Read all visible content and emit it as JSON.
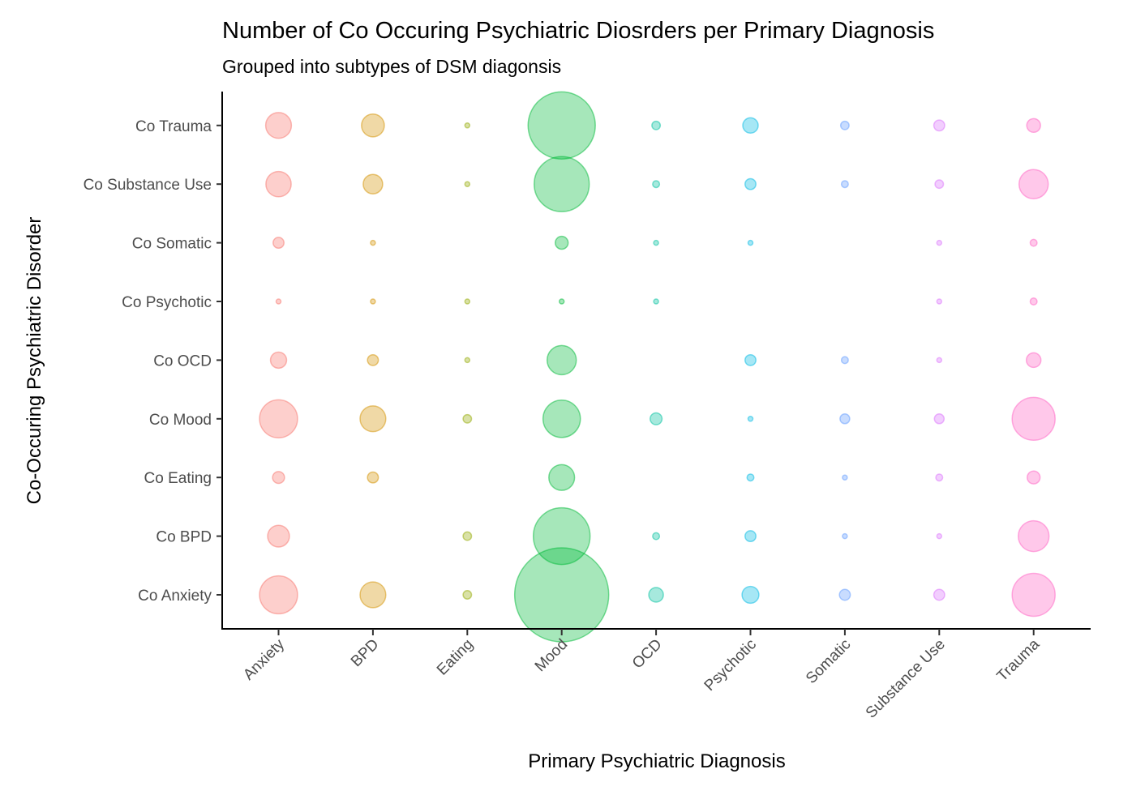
{
  "chart_data": {
    "type": "scatter",
    "subtype": "bubble",
    "title": "Number of Co Occuring Psychiatric Diosrders per Primary Diagnosis",
    "subtitle": "Grouped into subtypes of DSM diagonsis",
    "xlabel": "Primary Psychiatric Diagnosis",
    "ylabel": "Co-Occuring Psychiatric Disorder",
    "grid": false,
    "legend": "none",
    "x_categories": [
      "Anxiety",
      "BPD",
      "Eating",
      "Mood",
      "OCD",
      "Psychotic",
      "Somatic",
      "Substance Use",
      "Trauma"
    ],
    "y_categories": [
      "Co Anxiety",
      "Co BPD",
      "Co Eating",
      "Co Mood",
      "Co OCD",
      "Co Psychotic",
      "Co Somatic",
      "Co Substance Use",
      "Co Trauma"
    ],
    "colors": [
      "#F8766D",
      "#D39200",
      "#93AA00",
      "#00BA38",
      "#00C19F",
      "#00B9E3",
      "#619CFF",
      "#DB72FB",
      "#FF61C3"
    ],
    "alpha": 0.5,
    "size_encoding": "area proportional to count",
    "points": [
      {
        "x": "Anxiety",
        "y": "Co Trauma",
        "value": 28
      },
      {
        "x": "Anxiety",
        "y": "Co Substance Use",
        "value": 27
      },
      {
        "x": "Anxiety",
        "y": "Co Somatic",
        "value": 5
      },
      {
        "x": "Anxiety",
        "y": "Co Psychotic",
        "value": 1
      },
      {
        "x": "Anxiety",
        "y": "Co OCD",
        "value": 11
      },
      {
        "x": "Anxiety",
        "y": "Co Mood",
        "value": 61
      },
      {
        "x": "Anxiety",
        "y": "Co Eating",
        "value": 6
      },
      {
        "x": "Anxiety",
        "y": "Co BPD",
        "value": 20
      },
      {
        "x": "Anxiety",
        "y": "Co Anxiety",
        "value": 61
      },
      {
        "x": "BPD",
        "y": "Co Trauma",
        "value": 22
      },
      {
        "x": "BPD",
        "y": "Co Substance Use",
        "value": 16
      },
      {
        "x": "BPD",
        "y": "Co Somatic",
        "value": 1
      },
      {
        "x": "BPD",
        "y": "Co Psychotic",
        "value": 1
      },
      {
        "x": "BPD",
        "y": "Co OCD",
        "value": 5
      },
      {
        "x": "BPD",
        "y": "Co Mood",
        "value": 28
      },
      {
        "x": "BPD",
        "y": "Co Eating",
        "value": 5
      },
      {
        "x": "BPD",
        "y": "Co Anxiety",
        "value": 28
      },
      {
        "x": "Eating",
        "y": "Co Trauma",
        "value": 1
      },
      {
        "x": "Eating",
        "y": "Co Substance Use",
        "value": 1
      },
      {
        "x": "Eating",
        "y": "Co Psychotic",
        "value": 1
      },
      {
        "x": "Eating",
        "y": "Co OCD",
        "value": 1
      },
      {
        "x": "Eating",
        "y": "Co Mood",
        "value": 3
      },
      {
        "x": "Eating",
        "y": "Co BPD",
        "value": 3
      },
      {
        "x": "Eating",
        "y": "Co Anxiety",
        "value": 3
      },
      {
        "x": "Mood",
        "y": "Co Trauma",
        "value": 191
      },
      {
        "x": "Mood",
        "y": "Co Substance Use",
        "value": 128
      },
      {
        "x": "Mood",
        "y": "Co Somatic",
        "value": 7
      },
      {
        "x": "Mood",
        "y": "Co Psychotic",
        "value": 1
      },
      {
        "x": "Mood",
        "y": "Co OCD",
        "value": 36
      },
      {
        "x": "Mood",
        "y": "Co Mood",
        "value": 59
      },
      {
        "x": "Mood",
        "y": "Co Eating",
        "value": 28
      },
      {
        "x": "Mood",
        "y": "Co BPD",
        "value": 136
      },
      {
        "x": "Mood",
        "y": "Co Anxiety",
        "value": 374
      },
      {
        "x": "OCD",
        "y": "Co Trauma",
        "value": 3
      },
      {
        "x": "OCD",
        "y": "Co Substance Use",
        "value": 2
      },
      {
        "x": "OCD",
        "y": "Co Somatic",
        "value": 1
      },
      {
        "x": "OCD",
        "y": "Co Psychotic",
        "value": 1
      },
      {
        "x": "OCD",
        "y": "Co Mood",
        "value": 6
      },
      {
        "x": "OCD",
        "y": "Co BPD",
        "value": 2
      },
      {
        "x": "OCD",
        "y": "Co Anxiety",
        "value": 9
      },
      {
        "x": "Psychotic",
        "y": "Co Trauma",
        "value": 10
      },
      {
        "x": "Psychotic",
        "y": "Co Substance Use",
        "value": 5
      },
      {
        "x": "Psychotic",
        "y": "Co Somatic",
        "value": 1
      },
      {
        "x": "Psychotic",
        "y": "Co OCD",
        "value": 5
      },
      {
        "x": "Psychotic",
        "y": "Co Mood",
        "value": 1
      },
      {
        "x": "Psychotic",
        "y": "Co Eating",
        "value": 2
      },
      {
        "x": "Psychotic",
        "y": "Co BPD",
        "value": 5
      },
      {
        "x": "Psychotic",
        "y": "Co Anxiety",
        "value": 12
      },
      {
        "x": "Somatic",
        "y": "Co Trauma",
        "value": 3
      },
      {
        "x": "Somatic",
        "y": "Co Substance Use",
        "value": 2
      },
      {
        "x": "Somatic",
        "y": "Co OCD",
        "value": 2
      },
      {
        "x": "Somatic",
        "y": "Co Mood",
        "value": 4
      },
      {
        "x": "Somatic",
        "y": "Co Eating",
        "value": 1
      },
      {
        "x": "Somatic",
        "y": "Co BPD",
        "value": 1
      },
      {
        "x": "Somatic",
        "y": "Co Anxiety",
        "value": 5
      },
      {
        "x": "Substance Use",
        "y": "Co Trauma",
        "value": 5
      },
      {
        "x": "Substance Use",
        "y": "Co Substance Use",
        "value": 3
      },
      {
        "x": "Substance Use",
        "y": "Co Somatic",
        "value": 1
      },
      {
        "x": "Substance Use",
        "y": "Co Psychotic",
        "value": 1
      },
      {
        "x": "Substance Use",
        "y": "Co OCD",
        "value": 1
      },
      {
        "x": "Substance Use",
        "y": "Co Mood",
        "value": 4
      },
      {
        "x": "Substance Use",
        "y": "Co Eating",
        "value": 2
      },
      {
        "x": "Substance Use",
        "y": "Co BPD",
        "value": 1
      },
      {
        "x": "Substance Use",
        "y": "Co Anxiety",
        "value": 5
      },
      {
        "x": "Trauma",
        "y": "Co Trauma",
        "value": 8
      },
      {
        "x": "Trauma",
        "y": "Co Substance Use",
        "value": 36
      },
      {
        "x": "Trauma",
        "y": "Co Somatic",
        "value": 2
      },
      {
        "x": "Trauma",
        "y": "Co Psychotic",
        "value": 2
      },
      {
        "x": "Trauma",
        "y": "Co OCD",
        "value": 9
      },
      {
        "x": "Trauma",
        "y": "Co Mood",
        "value": 78
      },
      {
        "x": "Trauma",
        "y": "Co Eating",
        "value": 7
      },
      {
        "x": "Trauma",
        "y": "Co BPD",
        "value": 40
      },
      {
        "x": "Trauma",
        "y": "Co Anxiety",
        "value": 78
      }
    ]
  }
}
